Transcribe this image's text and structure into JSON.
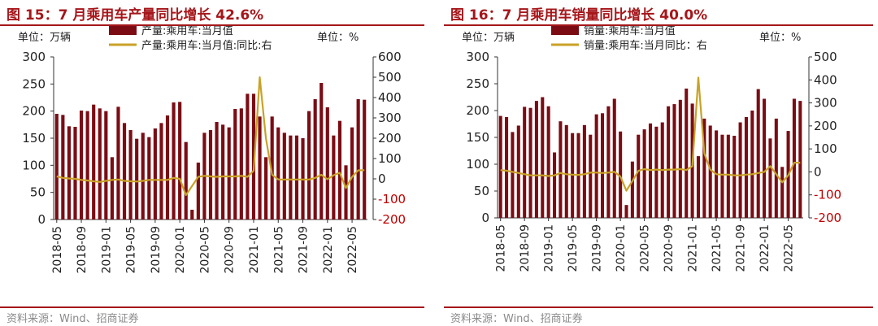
{
  "charts": [
    {
      "title": "图 15：7 月乘用车产量同比增长 42.6%",
      "source": "资料来源：Wind、招商证券",
      "chart_data": {
        "type": "bar",
        "left_unit": "单位：万辆",
        "right_unit": "单位：%",
        "legend": [
          "产量:乘用车:当月值",
          "产量:乘用车:当月值:同比:右"
        ],
        "x_tick_labels": [
          "2018-05",
          "2018-09",
          "2019-01",
          "2019-05",
          "2019-09",
          "2020-01",
          "2020-05",
          "2020-09",
          "2021-01",
          "2021-05",
          "2021-09",
          "2022-01",
          "2022-05"
        ],
        "x": [
          "2018-05",
          "2018-06",
          "2018-07",
          "2018-08",
          "2018-09",
          "2018-10",
          "2018-11",
          "2018-12",
          "2019-01",
          "2019-02",
          "2019-03",
          "2019-04",
          "2019-05",
          "2019-06",
          "2019-07",
          "2019-08",
          "2019-09",
          "2019-10",
          "2019-11",
          "2019-12",
          "2020-01",
          "2020-02",
          "2020-03",
          "2020-04",
          "2020-05",
          "2020-06",
          "2020-07",
          "2020-08",
          "2020-09",
          "2020-10",
          "2020-11",
          "2020-12",
          "2021-01",
          "2021-02",
          "2021-03",
          "2021-04",
          "2021-05",
          "2021-06",
          "2021-07",
          "2021-08",
          "2021-09",
          "2021-10",
          "2021-11",
          "2021-12",
          "2022-01",
          "2022-02",
          "2022-03",
          "2022-04",
          "2022-05",
          "2022-06",
          "2022-07"
        ],
        "ylim_left": [
          0,
          300
        ],
        "left_ticks": [
          0,
          50,
          100,
          150,
          200,
          250,
          300
        ],
        "ylim_right": [
          -200,
          600
        ],
        "right_ticks": [
          -200,
          -100,
          0,
          100,
          200,
          300,
          400,
          500,
          600
        ],
        "series": [
          {
            "name": "产量:乘用车:当月值",
            "axis": "left",
            "type": "bar",
            "color": "#7b0c14",
            "values": [
              195,
              193,
              172,
              171,
              201,
              200,
              212,
              205,
              200,
              115,
              208,
              178,
              165,
              149,
              160,
              152,
              168,
              178,
              192,
              216,
              217,
              143,
              18,
              105,
              160,
              165,
              180,
              175,
              170,
              204,
              205,
              232,
              232,
              190,
              115,
              190,
              170,
              160,
              155,
              155,
              150,
              200,
              222,
              252,
              207,
              155,
              182,
              100,
              170,
              222,
              221
            ]
          },
          {
            "name": "产量:乘用车:当月值:同比:右",
            "axis": "right",
            "type": "line",
            "color": "#c9a227",
            "values": [
              12,
              5,
              2,
              0,
              -5,
              -8,
              -12,
              -15,
              -10,
              -5,
              -3,
              -10,
              -12,
              -13,
              -10,
              -5,
              -5,
              -5,
              -5,
              5,
              0,
              -80,
              -35,
              10,
              15,
              12,
              10,
              12,
              12,
              12,
              15,
              10,
              40,
              500,
              200,
              20,
              -3,
              -3,
              -3,
              -3,
              -3,
              -3,
              5,
              20,
              -2,
              18,
              30,
              -45,
              10,
              42,
              43
            ]
          }
        ]
      }
    },
    {
      "title": "图 16：7 月乘用车销量同比增长 40.0%",
      "source": "资料来源：Wind、招商证券",
      "chart_data": {
        "type": "bar",
        "left_unit": "单位：万辆",
        "right_unit": "单位：%",
        "legend": [
          "销量:乘用车:当月值",
          "销量:乘用车:当月同比：右"
        ],
        "x_tick_labels": [
          "2018-05",
          "2018-09",
          "2019-01",
          "2019-05",
          "2019-09",
          "2020-01",
          "2020-05",
          "2020-09",
          "2021-01",
          "2021-05",
          "2021-09",
          "2022-01",
          "2022-05"
        ],
        "x": [
          "2018-05",
          "2018-06",
          "2018-07",
          "2018-08",
          "2018-09",
          "2018-10",
          "2018-11",
          "2018-12",
          "2019-01",
          "2019-02",
          "2019-03",
          "2019-04",
          "2019-05",
          "2019-06",
          "2019-07",
          "2019-08",
          "2019-09",
          "2019-10",
          "2019-11",
          "2019-12",
          "2020-01",
          "2020-02",
          "2020-03",
          "2020-04",
          "2020-05",
          "2020-06",
          "2020-07",
          "2020-08",
          "2020-09",
          "2020-10",
          "2020-11",
          "2020-12",
          "2021-01",
          "2021-02",
          "2021-03",
          "2021-04",
          "2021-05",
          "2021-06",
          "2021-07",
          "2021-08",
          "2021-09",
          "2021-10",
          "2021-11",
          "2021-12",
          "2022-01",
          "2022-02",
          "2022-03",
          "2022-04",
          "2022-05",
          "2022-06",
          "2022-07"
        ],
        "ylim_left": [
          0,
          300
        ],
        "left_ticks": [
          0,
          50,
          100,
          150,
          200,
          250,
          300
        ],
        "ylim_right": [
          -200,
          500
        ],
        "right_ticks": [
          -200,
          -100,
          0,
          100,
          200,
          300,
          400,
          500
        ],
        "series": [
          {
            "name": "销量:乘用车:当月值",
            "axis": "left",
            "type": "bar",
            "color": "#7b0c14",
            "values": [
              190,
              188,
              160,
              172,
              207,
              205,
              218,
              225,
              208,
              122,
              180,
              173,
              158,
              158,
              173,
              155,
              193,
              195,
              208,
              222,
              161,
              24,
              105,
              155,
              165,
              176,
              170,
              178,
              208,
              212,
              220,
              241,
              213,
              115,
              185,
              172,
              163,
              155,
              155,
              153,
              178,
              188,
              200,
              240,
              222,
              148,
              185,
              95,
              162,
              222,
              218
            ]
          },
          {
            "name": "销量:乘用车:当月同比：右",
            "axis": "right",
            "type": "line",
            "color": "#c9a227",
            "values": [
              8,
              5,
              0,
              -5,
              -10,
              -15,
              -15,
              -15,
              -18,
              -15,
              -5,
              -10,
              -12,
              -13,
              -10,
              -3,
              -3,
              -5,
              -3,
              0,
              -20,
              -82,
              -40,
              5,
              12,
              8,
              10,
              8,
              10,
              10,
              12,
              8,
              25,
              410,
              80,
              10,
              -10,
              -12,
              -12,
              -15,
              -15,
              -12,
              -10,
              -5,
              0,
              25,
              -10,
              -45,
              -15,
              40,
              40
            ]
          }
        ]
      }
    }
  ]
}
